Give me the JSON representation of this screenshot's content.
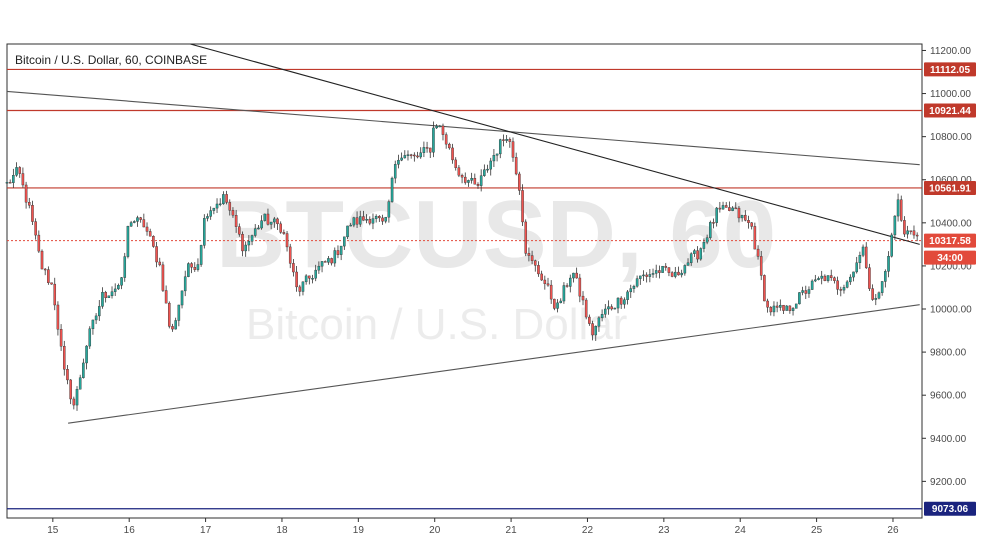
{
  "chart_data": {
    "type": "candlestick",
    "title": "Bitcoin / U.S. Dollar, 60, COINBASE",
    "watermark_symbol": "BTCUSD, 60",
    "watermark_name": "Bitcoin / U.S. Dollar",
    "x_ticks": [
      "15",
      "16",
      "17",
      "18",
      "19",
      "20",
      "21",
      "22",
      "23",
      "24",
      "25",
      "26"
    ],
    "x_range": [
      14.4,
      26.38
    ],
    "y_ticks": [
      "11200.00",
      "11000.00",
      "10800.00",
      "10600.00",
      "10400.00",
      "10200.00",
      "10000.00",
      "9800.00",
      "9600.00",
      "9400.00",
      "9200.00"
    ],
    "y_range": [
      9030,
      11230
    ],
    "grid": false,
    "colors": {
      "up": "#26a69a",
      "down": "#ef5350",
      "wick": "#333333",
      "level": "#c0392b",
      "support": "#1a237e",
      "current": "#e24a3b"
    },
    "horizontal_levels": [
      {
        "value": 11112.05,
        "label": "11112.05",
        "color": "#c0392b"
      },
      {
        "value": 10921.44,
        "label": "10921.44",
        "color": "#c0392b"
      },
      {
        "value": 10561.91,
        "label": "10561.91",
        "color": "#c0392b"
      },
      {
        "value": 9073.06,
        "label": "9073.06",
        "color": "#1a237e"
      }
    ],
    "current_price": {
      "value": 10317.58,
      "label": "10317.58",
      "countdown": "34:00"
    },
    "trendlines": [
      {
        "x": [
          14.4,
          26.35
        ],
        "y": [
          11010,
          10670
        ],
        "color": "#555555"
      },
      {
        "x": [
          16.8,
          26.35
        ],
        "y": [
          11230,
          10300
        ],
        "color": "#222222"
      },
      {
        "x": [
          15.2,
          26.35
        ],
        "y": [
          9470,
          10020
        ],
        "color": "#555555"
      }
    ],
    "anchors": [
      [
        14.4,
        10580
      ],
      [
        14.55,
        10640
      ],
      [
        14.7,
        10450
      ],
      [
        14.85,
        10200
      ],
      [
        15.0,
        10100
      ],
      [
        15.15,
        9700
      ],
      [
        15.28,
        9550
      ],
      [
        15.45,
        9850
      ],
      [
        15.65,
        10060
      ],
      [
        15.9,
        10120
      ],
      [
        16.0,
        10420
      ],
      [
        16.2,
        10390
      ],
      [
        16.4,
        10200
      ],
      [
        16.55,
        9870
      ],
      [
        16.75,
        10180
      ],
      [
        16.9,
        10220
      ],
      [
        17.0,
        10450
      ],
      [
        17.25,
        10520
      ],
      [
        17.5,
        10280
      ],
      [
        17.75,
        10420
      ],
      [
        18.0,
        10380
      ],
      [
        18.2,
        10080
      ],
      [
        18.45,
        10180
      ],
      [
        18.7,
        10250
      ],
      [
        18.9,
        10400
      ],
      [
        19.2,
        10430
      ],
      [
        19.35,
        10380
      ],
      [
        19.5,
        10720
      ],
      [
        19.75,
        10700
      ],
      [
        19.95,
        10750
      ],
      [
        20.0,
        10880
      ],
      [
        20.1,
        10820
      ],
      [
        20.3,
        10640
      ],
      [
        20.55,
        10560
      ],
      [
        20.75,
        10700
      ],
      [
        20.95,
        10820
      ],
      [
        21.1,
        10600
      ],
      [
        21.2,
        10250
      ],
      [
        21.4,
        10150
      ],
      [
        21.6,
        10000
      ],
      [
        21.8,
        10180
      ],
      [
        21.95,
        10020
      ],
      [
        22.05,
        9880
      ],
      [
        22.2,
        9980
      ],
      [
        22.45,
        10050
      ],
      [
        22.7,
        10150
      ],
      [
        22.95,
        10180
      ],
      [
        23.15,
        10150
      ],
      [
        23.25,
        10200
      ],
      [
        23.45,
        10260
      ],
      [
        23.7,
        10450
      ],
      [
        23.9,
        10460
      ],
      [
        24.15,
        10380
      ],
      [
        24.35,
        10000
      ],
      [
        24.6,
        9990
      ],
      [
        24.9,
        10100
      ],
      [
        25.1,
        10150
      ],
      [
        25.3,
        10100
      ],
      [
        25.5,
        10180
      ],
      [
        25.6,
        10320
      ],
      [
        25.7,
        10050
      ],
      [
        25.85,
        10100
      ],
      [
        25.95,
        10250
      ],
      [
        26.05,
        10520
      ],
      [
        26.15,
        10340
      ],
      [
        26.25,
        10380
      ],
      [
        26.35,
        10317
      ]
    ]
  }
}
